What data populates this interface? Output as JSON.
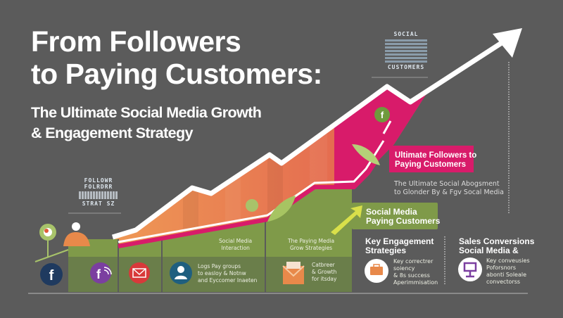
{
  "title": {
    "line1": "From Followers",
    "line2": "to Paying Customers:"
  },
  "subtitle": {
    "line1": "The Ultimate Social Media Growth",
    "line2": "& Engagement Strategy"
  },
  "word_cloud_left": [
    "FOLLOWR",
    "FOLRDRR",
    "STRAT SZ"
  ],
  "word_cloud_right": [
    "SOCIAL",
    "CUSTOMERS"
  ],
  "callouts": {
    "pink": {
      "line1": "Ultimate Followers to",
      "line2": "Paying Customers"
    },
    "green": {
      "line1": "Social Media",
      "line2": "Paying Customers"
    },
    "gray": {
      "line1": "The Ultimate Social Abogsment",
      "line2": "to Glonder By & Fgv Socal Media"
    }
  },
  "steps": [
    {
      "label_line1": "Social Media",
      "label_line2": "Interaction"
    },
    {
      "label_line1": "The Paying Media",
      "label_line2": "Grow Strategies"
    }
  ],
  "step_details": [
    {
      "line1": "Logs Pay groups",
      "line2": "to easloy & Notnw",
      "line3": "and Eyccomer Inaeten"
    },
    {
      "line1": "Catbreer",
      "line2": "& Growth",
      "line3": "for itsday"
    }
  ],
  "columns": [
    {
      "heading_line1": "Key Engagement",
      "heading_line2": "Strategies",
      "text": [
        "Key correctrer",
        "soiency",
        "& 8s success",
        "Aperimmisation"
      ],
      "icon": "briefcase-icon",
      "color": "#e8894a"
    },
    {
      "heading_line1": "Sales Conversions",
      "heading_line2": "Social Media &",
      "text": [
        "Key conveusies",
        "Poforsnors",
        "abonti Soleale",
        "convectorss"
      ],
      "icon": "monitor-icon",
      "color": "#7b3fa0"
    }
  ],
  "icons": [
    {
      "name": "facebook-icon",
      "color": "#1f3a5f"
    },
    {
      "name": "facebook-rss-icon",
      "color": "#7b3fa0"
    },
    {
      "name": "mail-icon",
      "color": "#d8393a"
    },
    {
      "name": "user-icon",
      "color": "#1f5f7f"
    },
    {
      "name": "envelope-icon",
      "color": "#e8894a"
    }
  ],
  "colors": {
    "background": "#5b5b5b",
    "pink": "#d81b6a",
    "orange": "#e8784a",
    "green": "#7f9a49",
    "dark_green": "#6a7e4a"
  }
}
